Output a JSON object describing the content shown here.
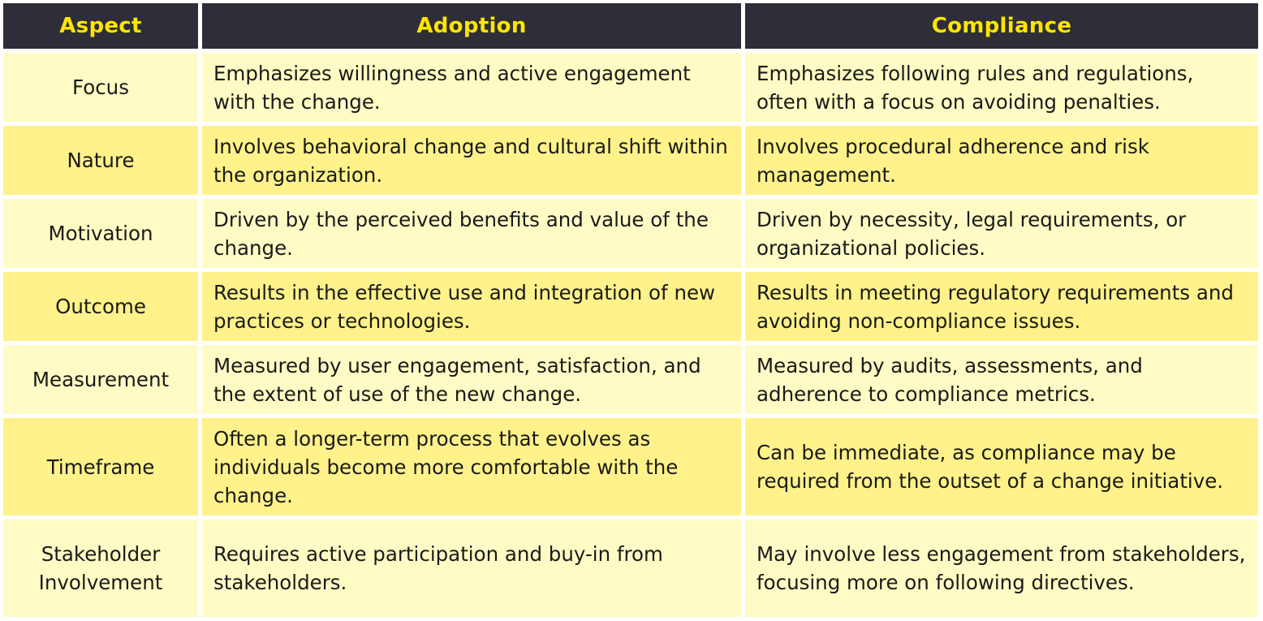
{
  "headers": [
    "Aspect",
    "Adoption",
    "Compliance"
  ],
  "rows": [
    {
      "aspect": "Focus",
      "adoption": "Emphasizes willingness and active engagement with the change.",
      "compliance": "Emphasizes following rules and regulations, often with a focus on avoiding penalties."
    },
    {
      "aspect": "Nature",
      "adoption": "Involves behavioral change and cultural shift within the organization.",
      "compliance": "Involves procedural adherence and risk management."
    },
    {
      "aspect": "Motivation",
      "adoption": "Driven by the perceived benefits and value of the change.",
      "compliance": "Driven by necessity, legal requirements, or organizational policies."
    },
    {
      "aspect": "Outcome",
      "adoption": "Results in the effective use and integration of new practices or technologies.",
      "compliance": "Results in meeting regulatory requirements and avoiding non-compliance issues."
    },
    {
      "aspect": "Measurement",
      "adoption": "Measured by user engagement, satisfaction, and the extent of use of the new change.",
      "compliance": "Measured by audits, assessments, and adherence to compliance metrics."
    },
    {
      "aspect": "Timeframe",
      "adoption": "Often a longer-term process that evolves as individuals become more comfortable with the change.",
      "compliance": "Can be immediate, as compliance may be required from the outset of a change initiative."
    },
    {
      "aspect": "Stakeholder Involvement",
      "adoption": "Requires active participation and buy-in from stakeholders.",
      "compliance": "May involve less engagement from stakeholders, focusing more on following directives."
    }
  ],
  "colors": {
    "header_bg": "#2e2e38",
    "header_text": "#ffe600",
    "row_light": "#fffbc4",
    "row_dark": "#fff28a"
  }
}
